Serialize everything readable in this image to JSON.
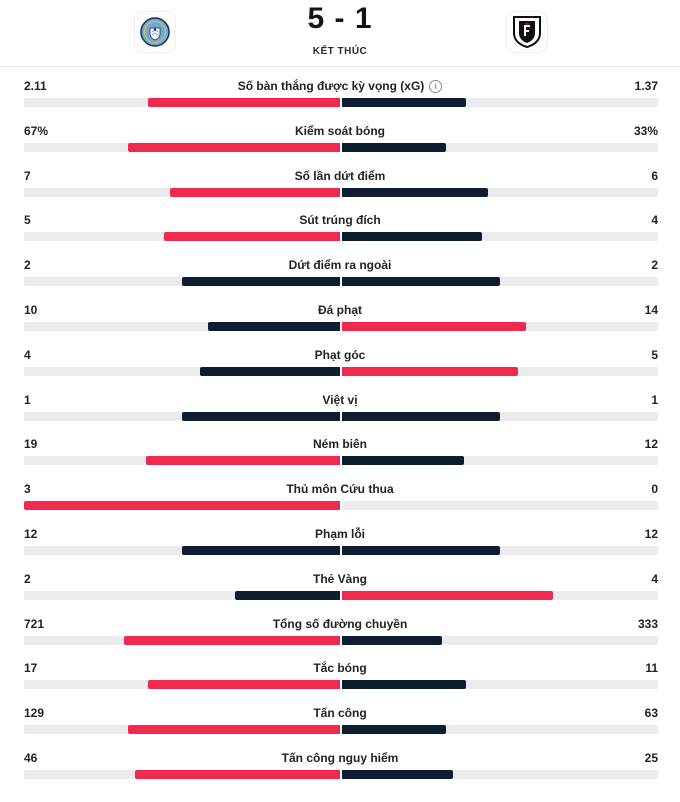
{
  "match": {
    "score": "5 - 1",
    "status": "KẾT THÚC",
    "home_crest_icon": "manchester-city-crest-icon",
    "away_crest_icon": "fulham-crest-icon"
  },
  "colors": {
    "leader": "#f2294e",
    "trailer": "#0e1e30",
    "track": "#ebebee"
  },
  "stats": [
    {
      "label": "Số bàn thắng được kỳ vọng (xG)",
      "home": "2.11",
      "away": "1.37",
      "h": 2.11,
      "a": 1.37,
      "info": true
    },
    {
      "label": "Kiểm soát bóng",
      "home": "67%",
      "away": "33%",
      "h": 67,
      "a": 33
    },
    {
      "label": "Số lần dứt điểm",
      "home": "7",
      "away": "6",
      "h": 7,
      "a": 6
    },
    {
      "label": "Sút trúng đích",
      "home": "5",
      "away": "4",
      "h": 5,
      "a": 4
    },
    {
      "label": "Dứt điểm ra ngoài",
      "home": "2",
      "away": "2",
      "h": 2,
      "a": 2
    },
    {
      "label": "Đá phạt",
      "home": "10",
      "away": "14",
      "h": 10,
      "a": 14
    },
    {
      "label": "Phạt góc",
      "home": "4",
      "away": "5",
      "h": 4,
      "a": 5
    },
    {
      "label": "Việt vị",
      "home": "1",
      "away": "1",
      "h": 1,
      "a": 1
    },
    {
      "label": "Ném biên",
      "home": "19",
      "away": "12",
      "h": 19,
      "a": 12
    },
    {
      "label": "Thủ môn Cứu thua",
      "home": "3",
      "away": "0",
      "h": 3,
      "a": 0
    },
    {
      "label": "Phạm lỗi",
      "home": "12",
      "away": "12",
      "h": 12,
      "a": 12
    },
    {
      "label": "Thẻ Vàng",
      "home": "2",
      "away": "4",
      "h": 2,
      "a": 4
    },
    {
      "label": "Tổng số đường chuyền",
      "home": "721",
      "away": "333",
      "h": 721,
      "a": 333
    },
    {
      "label": "Tắc bóng",
      "home": "17",
      "away": "11",
      "h": 17,
      "a": 11
    },
    {
      "label": "Tấn công",
      "home": "129",
      "away": "63",
      "h": 129,
      "a": 63
    },
    {
      "label": "Tấn công nguy hiểm",
      "home": "46",
      "away": "25",
      "h": 46,
      "a": 25
    }
  ]
}
